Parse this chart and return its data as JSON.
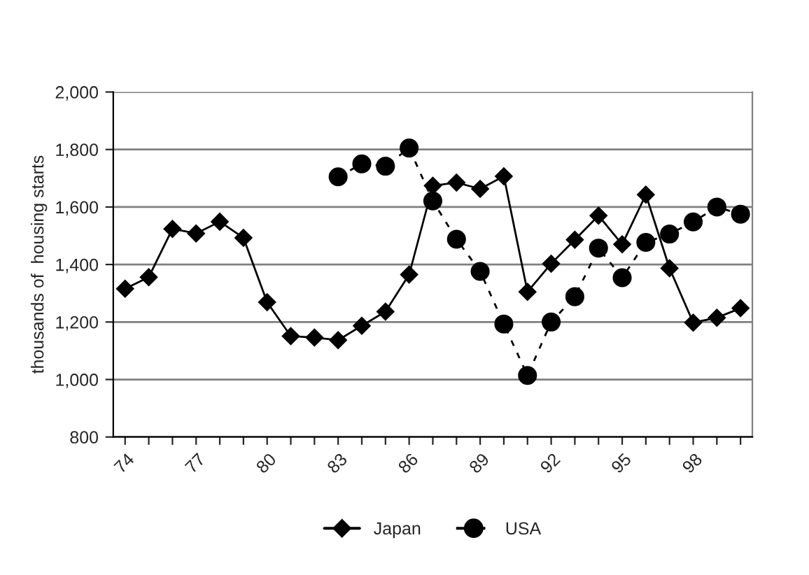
{
  "chart_data": {
    "type": "line",
    "ylabel": "thousands of  housing starts",
    "categories": [
      "74",
      null,
      null,
      "77",
      null,
      null,
      "80",
      null,
      null,
      "83",
      null,
      null,
      "86",
      null,
      null,
      "89",
      null,
      null,
      "92",
      null,
      null,
      "95",
      null,
      null,
      "98",
      null,
      null
    ],
    "series": [
      {
        "name": "Japan",
        "color": "#000000",
        "marker": "diamond",
        "line_style": "solid",
        "values": [
          1316,
          1356,
          1524,
          1508,
          1549,
          1493,
          1269,
          1151,
          1146,
          1137,
          1187,
          1236,
          1365,
          1674,
          1685,
          1663,
          1707,
          1305,
          1403,
          1486,
          1570,
          1470,
          1643,
          1387,
          1198,
          1215,
          1248
        ]
      },
      {
        "name": "USA",
        "color": "#000000",
        "marker": "circle",
        "line_style": "dashed",
        "values": [
          null,
          null,
          null,
          null,
          null,
          null,
          null,
          null,
          null,
          1705,
          1750,
          1742,
          1805,
          1621,
          1488,
          1376,
          1193,
          1014,
          1200,
          1288,
          1457,
          1354,
          1477,
          1506,
          1548,
          1600,
          1575
        ]
      }
    ],
    "ylim": [
      800,
      2000
    ],
    "yticks": [
      {
        "value": 800,
        "label": "800"
      },
      {
        "value": 1000,
        "label": "1,000"
      },
      {
        "value": 1200,
        "label": "1,200"
      },
      {
        "value": 1400,
        "label": "1,400"
      },
      {
        "value": 1600,
        "label": "1,600"
      },
      {
        "value": 1800,
        "label": "1,800"
      },
      {
        "value": 2000,
        "label": "2,000"
      }
    ],
    "grid": "y",
    "legend": "bottom"
  }
}
